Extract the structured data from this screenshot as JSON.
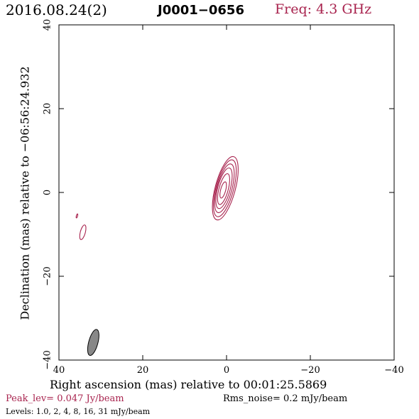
{
  "header": {
    "date": "2016.08.24(2)",
    "source": "J0001−0656",
    "freq": "Freq: 4.3 GHz"
  },
  "footer": {
    "peak": "Peak_lev=  0.047 Jy/beam",
    "rms": "Rms_noise=  0.2 mJy/beam",
    "levels": "Levels: 1.0,   2,   4,   8,   16,   31 mJy/beam"
  },
  "colors": {
    "contour": "#a8234e",
    "beam_fill": "#888888",
    "axis": "#000000"
  },
  "chart_data": {
    "type": "contour",
    "xlabel": "Right ascension (mas) relative to 00:01:25.5869",
    "ylabel": "Declination (mas) relative to −06:56:24.932",
    "xlim": [
      40,
      -40
    ],
    "ylim": [
      -40,
      40
    ],
    "x_ticks": [
      40,
      20,
      0,
      -20,
      -40
    ],
    "y_ticks": [
      -40,
      -20,
      0,
      20,
      40
    ],
    "x_tick_labels": [
      "40",
      "20",
      "0",
      "−20",
      "−40"
    ],
    "y_tick_labels": [
      "−40",
      "−20",
      "0",
      "20",
      "40"
    ],
    "levels_mJy": [
      1.0,
      2,
      4,
      8,
      16,
      31
    ],
    "peak_Jy_per_beam": 0.047,
    "rms_noise_mJy_per_beam": 0.2,
    "contours": [
      {
        "level": 1.0,
        "cx": 0.3,
        "cy": 1.0,
        "a": 2.4,
        "b": 7.8,
        "angle_deg": -15
      },
      {
        "level": 2,
        "cx": 0.4,
        "cy": 1.0,
        "a": 2.1,
        "b": 7.0,
        "angle_deg": -15
      },
      {
        "level": 4,
        "cx": 0.5,
        "cy": 1.0,
        "a": 1.8,
        "b": 6.0,
        "angle_deg": -15
      },
      {
        "level": 8,
        "cx": 0.6,
        "cy": 1.0,
        "a": 1.5,
        "b": 5.0,
        "angle_deg": -15
      },
      {
        "level": 16,
        "cx": 0.7,
        "cy": 0.8,
        "a": 1.1,
        "b": 3.8,
        "angle_deg": -15
      },
      {
        "level": 31,
        "cx": 0.8,
        "cy": 0.6,
        "a": 0.6,
        "b": 2.0,
        "angle_deg": -15
      },
      {
        "level": 1.0,
        "cx": 34.3,
        "cy": -9.5,
        "a": 0.6,
        "b": 1.8,
        "angle_deg": -15
      },
      {
        "level": 1.0,
        "cx": 35.7,
        "cy": -5.6,
        "a": 0.15,
        "b": 0.5,
        "angle_deg": -15
      }
    ],
    "beam": {
      "cx": 31.8,
      "cy": -35.8,
      "a": 1.1,
      "b": 3.2,
      "angle_deg": -15
    }
  }
}
